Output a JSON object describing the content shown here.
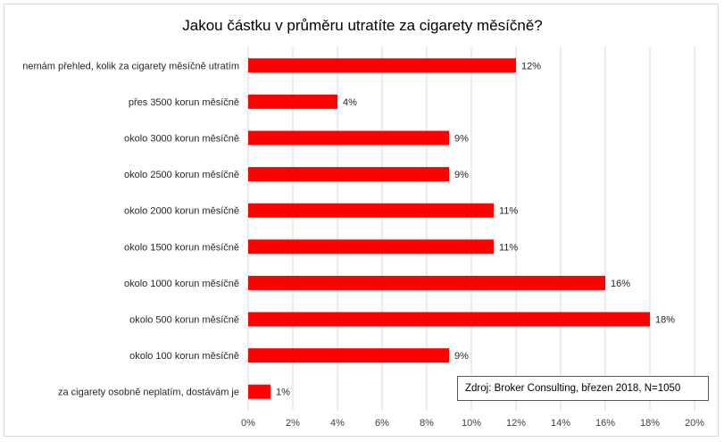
{
  "chart_data": {
    "type": "bar",
    "orientation": "horizontal",
    "title": "Jakou částku v průměru utratíte za cigarety měsíčně?",
    "xlabel": "",
    "ylabel": "",
    "xlim": [
      0,
      20
    ],
    "x_ticks": [
      "0%",
      "2%",
      "4%",
      "6%",
      "8%",
      "10%",
      "12%",
      "14%",
      "16%",
      "18%",
      "20%"
    ],
    "grid": "vertical",
    "legend": "none",
    "bar_color": "#ff0000",
    "categories": [
      "nemám přehled, kolik za cigarety měsíčně utratím",
      "přes 3500 korun měsíčně",
      "okolo 3000 korun měsíčně",
      "okolo 2500 korun měsíčně",
      "okolo 2000 korun měsíčně",
      "okolo 1500 korun měsíčně",
      "okolo 1000 korun měsíčně",
      "okolo 500 korun měsíčně",
      "okolo 100 korun měsíčně",
      "za cigarety osobně neplatím, dostávám je"
    ],
    "values": [
      12,
      4,
      9,
      9,
      11,
      11,
      16,
      18,
      9,
      1
    ],
    "data_labels": [
      "12%",
      "4%",
      "9%",
      "9%",
      "11%",
      "11%",
      "16%",
      "18%",
      "9%",
      "1%"
    ],
    "annotation": "Zdroj: Broker Consulting, březen 2018, N=1050"
  }
}
